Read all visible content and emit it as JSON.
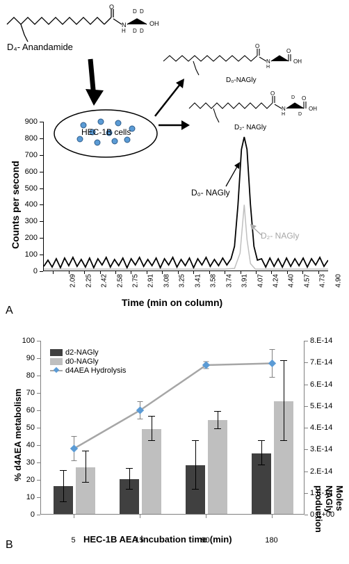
{
  "panelA": {
    "label": "A",
    "d4_label": "D₄- Anandamide",
    "d0_nagly_top": "D₀-NAGly",
    "d2_nagly_top": "D₂- NAGly",
    "cells_label": "HEC-1B cells",
    "peak_d0": "D₀- NAGly",
    "peak_d2": "D₂- NAGly",
    "yaxis": "Counts per second",
    "xaxis": "Time (min on column)",
    "yticks": [
      0,
      100,
      200,
      300,
      400,
      500,
      600,
      700,
      800,
      900
    ],
    "xticks": [
      "2.09",
      "2.25",
      "2.42",
      "2.58",
      "2.75",
      "2.91",
      "3.08",
      "3.25",
      "3.41",
      "3.58",
      "3.74",
      "3.91",
      "4.07",
      "4.24",
      "4.40",
      "4.57",
      "4.73",
      "4.90"
    ],
    "d0_peak_color": "#000000",
    "d2_peak_color": "#bfbfbf",
    "d2_text_color": "#a6a6a6"
  },
  "panelB": {
    "label": "B",
    "yaxis_left": "% d4AEA metabolism",
    "yaxis_right": "Moles NAGly production",
    "xaxis": "HEC-1B AEA incubation time (min)",
    "yticks_left": [
      0,
      10,
      20,
      30,
      40,
      50,
      60,
      70,
      80,
      90,
      100
    ],
    "yticks_right": [
      "0.E+00",
      "1.E-14",
      "2.E-14",
      "3.E-14",
      "4.E-14",
      "5.E-14",
      "6.E-14",
      "7.E-14",
      "8.E-14"
    ],
    "xticks": [
      "5",
      "15",
      "90",
      "180"
    ],
    "legend": {
      "d2": "d2-NAGly",
      "d0": "d0-NAGly",
      "line": "d4AEA Hydrolysis"
    },
    "colors": {
      "d2_bar": "#404040",
      "d0_bar": "#bfbfbf",
      "line": "#a6a6a6",
      "marker": "#5b9bd5",
      "axis": "#7f7f7f"
    },
    "data": {
      "d2": [
        16,
        20,
        28,
        35
      ],
      "d2_err": [
        9,
        6,
        14,
        7
      ],
      "d0": [
        27,
        49,
        54,
        65
      ],
      "d0_err": [
        9,
        7,
        5,
        23
      ],
      "line_pct": [
        38,
        60,
        86,
        87
      ],
      "line_err": [
        7,
        5,
        2,
        8
      ]
    }
  }
}
